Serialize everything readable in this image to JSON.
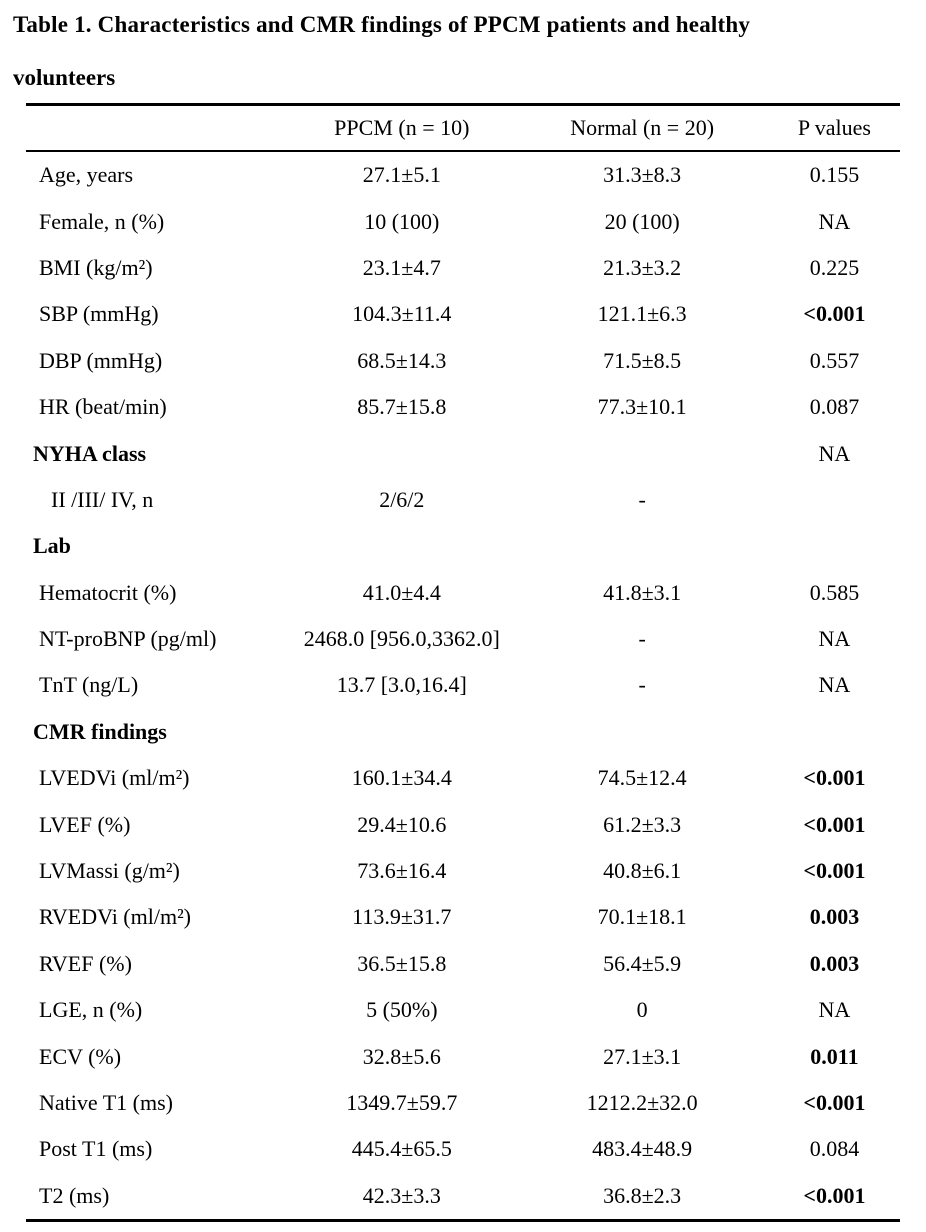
{
  "page": {
    "background_color": "#ffffff",
    "text_color": "#000000"
  },
  "title": {
    "line1": "Table 1. Characteristics and CMR findings of PPCM patients and healthy",
    "line2": "volunteers"
  },
  "chart_data": {
    "type": "table",
    "title": "Table 1. Characteristics and CMR findings of PPCM patients and healthy volunteers",
    "columns": [
      "",
      "PPCM (n = 10)",
      "Normal (n = 20)",
      "P values"
    ],
    "rows": [
      {
        "label": "Age, years",
        "ppcm": "27.1±5.1",
        "normal": "31.3±8.3",
        "p": "0.155",
        "style": "row",
        "p_bold": false
      },
      {
        "label": "Female, n (%)",
        "ppcm": "10 (100)",
        "normal": "20 (100)",
        "p": "NA",
        "style": "row",
        "p_bold": false
      },
      {
        "label": "BMI (kg/m²)",
        "ppcm": "23.1±4.7",
        "normal": "21.3±3.2",
        "p": "0.225",
        "style": "row",
        "p_bold": false
      },
      {
        "label": "SBP (mmHg)",
        "ppcm": "104.3±11.4",
        "normal": "121.1±6.3",
        "p": "<0.001",
        "style": "row",
        "p_bold": true
      },
      {
        "label": "DBP (mmHg)",
        "ppcm": "68.5±14.3",
        "normal": "71.5±8.5",
        "p": "0.557",
        "style": "row",
        "p_bold": false
      },
      {
        "label": "HR (beat/min)",
        "ppcm": "85.7±15.8",
        "normal": "77.3±10.1",
        "p": "0.087",
        "style": "row",
        "p_bold": false
      },
      {
        "label": "NYHA class",
        "ppcm": "",
        "normal": "",
        "p": "NA",
        "style": "section",
        "p_bold": false
      },
      {
        "label": "II /III/ IV, n",
        "ppcm": "2/6/2",
        "normal": "-",
        "p": "",
        "style": "subrow",
        "p_bold": false
      },
      {
        "label": "Lab",
        "ppcm": "",
        "normal": "",
        "p": "",
        "style": "section",
        "p_bold": false
      },
      {
        "label": "Hematocrit (%)",
        "ppcm": "41.0±4.4",
        "normal": "41.8±3.1",
        "p": "0.585",
        "style": "row",
        "p_bold": false
      },
      {
        "label": "NT-proBNP (pg/ml)",
        "ppcm": "2468.0 [956.0,3362.0]",
        "normal": "-",
        "p": "NA",
        "style": "row",
        "p_bold": false
      },
      {
        "label": "TnT (ng/L)",
        "ppcm": "13.7 [3.0,16.4]",
        "normal": "-",
        "p": "NA",
        "style": "row",
        "p_bold": false
      },
      {
        "label": "CMR findings",
        "ppcm": "",
        "normal": "",
        "p": "",
        "style": "section",
        "p_bold": false
      },
      {
        "label": "LVEDVi (ml/m²)",
        "ppcm": "160.1±34.4",
        "normal": "74.5±12.4",
        "p": "<0.001",
        "style": "row",
        "p_bold": true
      },
      {
        "label": "LVEF (%)",
        "ppcm": "29.4±10.6",
        "normal": "61.2±3.3",
        "p": "<0.001",
        "style": "row",
        "p_bold": true
      },
      {
        "label": "LVMassi (g/m²)",
        "ppcm": "73.6±16.4",
        "normal": "40.8±6.1",
        "p": "<0.001",
        "style": "row",
        "p_bold": true
      },
      {
        "label": "RVEDVi (ml/m²)",
        "ppcm": "113.9±31.7",
        "normal": "70.1±18.1",
        "p": "0.003",
        "style": "row",
        "p_bold": true
      },
      {
        "label": "RVEF (%)",
        "ppcm": "36.5±15.8",
        "normal": "56.4±5.9",
        "p": "0.003",
        "style": "row",
        "p_bold": true
      },
      {
        "label": "LGE, n (%)",
        "ppcm": "5 (50%)",
        "normal": "0",
        "p": "NA",
        "style": "row",
        "p_bold": false
      },
      {
        "label": "ECV (%)",
        "ppcm": "32.8±5.6",
        "normal": "27.1±3.1",
        "p": "0.011",
        "style": "row",
        "p_bold": true
      },
      {
        "label": "Native T1 (ms)",
        "ppcm": "1349.7±59.7",
        "normal": "1212.2±32.0",
        "p": "<0.001",
        "style": "row",
        "p_bold": true
      },
      {
        "label": "Post T1 (ms)",
        "ppcm": "445.4±65.5",
        "normal": "483.4±48.9",
        "p": "0.084",
        "style": "row",
        "p_bold": false
      },
      {
        "label": "T2 (ms)",
        "ppcm": "42.3±3.3",
        "normal": "36.8±2.3",
        "p": "<0.001",
        "style": "row",
        "p_bold": true
      }
    ]
  }
}
